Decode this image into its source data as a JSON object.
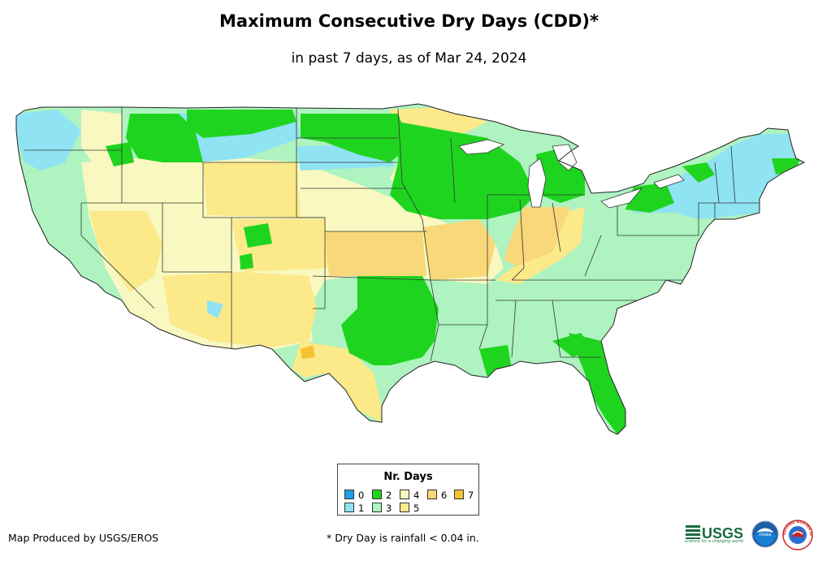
{
  "title": "Maximum Consecutive Dry Days (CDD)*",
  "subtitle": "in past 7 days, as of Mar 24, 2024",
  "legend": {
    "title": "Nr. Days",
    "items": [
      {
        "label": "0",
        "color": "#1f9fe6"
      },
      {
        "label": "1",
        "color": "#8fe3f3"
      },
      {
        "label": "2",
        "color": "#1fd41f"
      },
      {
        "label": "3",
        "color": "#aef3c0"
      },
      {
        "label": "4",
        "color": "#f8f8c0"
      },
      {
        "label": "5",
        "color": "#fbe98a"
      },
      {
        "label": "6",
        "color": "#f8d878"
      },
      {
        "label": "7",
        "color": "#f5c230"
      }
    ]
  },
  "credit": "Map Produced by USGS/EROS",
  "footnote": "* Dry Day is rainfall < 0.04 in.",
  "logos": {
    "usgs": "USGS",
    "usgs_tagline": "science for a changing world",
    "noaa": "noaa",
    "nws": "NATIONAL WEATHER SERVICE"
  }
}
